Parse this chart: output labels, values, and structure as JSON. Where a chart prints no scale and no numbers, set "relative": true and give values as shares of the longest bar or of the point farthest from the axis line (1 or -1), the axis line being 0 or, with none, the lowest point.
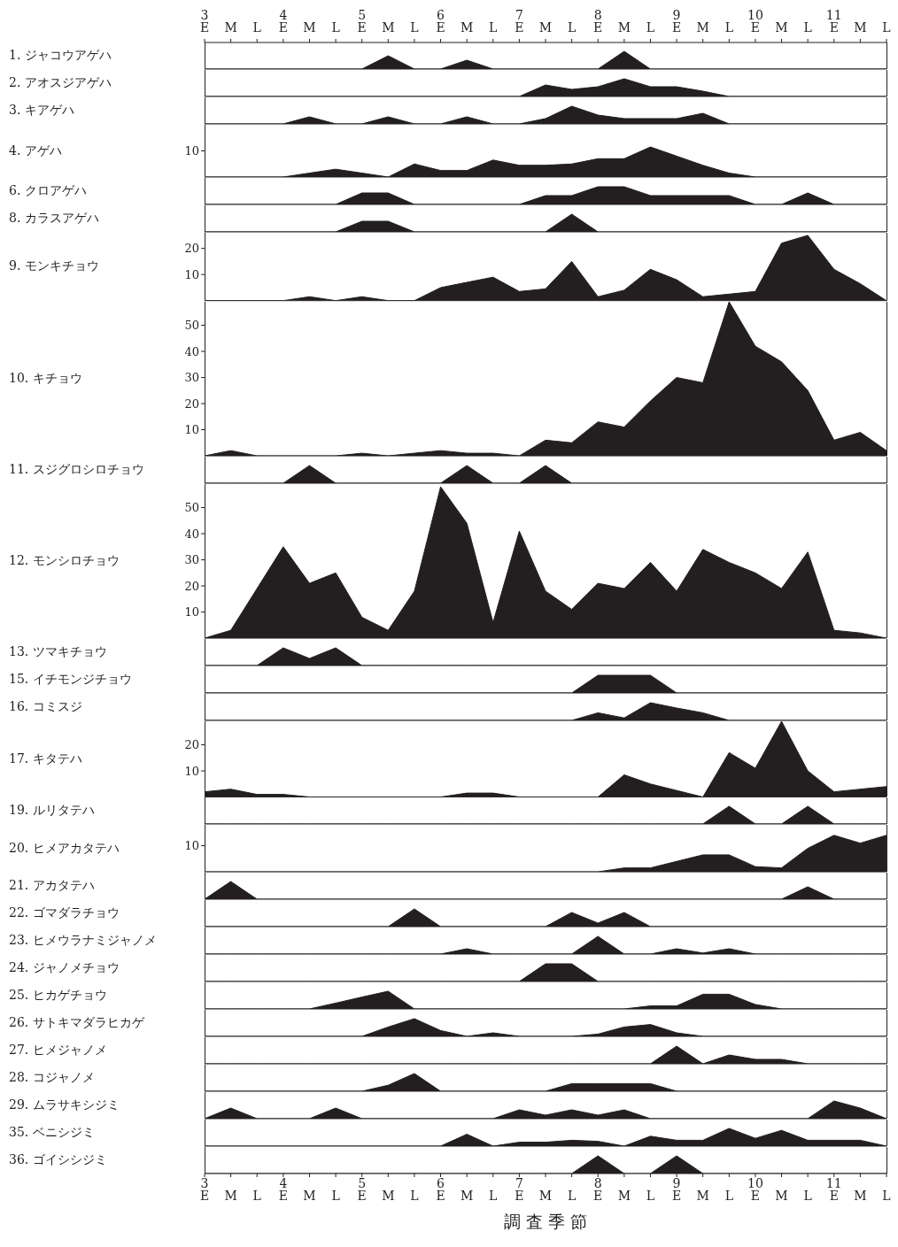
{
  "chart_data": [
    {
      "type": "area",
      "ylabel": "1. ジャコウアゲハ",
      "categories": [
        "3 E",
        "M",
        "L",
        "4 E",
        "M",
        "L",
        "5 E",
        "M",
        "L",
        "6 E",
        "M",
        "L",
        "7 E",
        "M",
        "L",
        "8 E",
        "M",
        "L",
        "9 E",
        "M",
        "L",
        "10 E",
        "M",
        "L",
        "11 E",
        "M",
        "L"
      ],
      "values": [
        0,
        0,
        0,
        0,
        0,
        0,
        0,
        0.75,
        0,
        0,
        0.5,
        0,
        0,
        0,
        0,
        0,
        1,
        0,
        0,
        0,
        0,
        0,
        0,
        0,
        0,
        0,
        0
      ],
      "color": "#231f20",
      "relative": true,
      "tick_labels": "x"
    },
    {
      "type": "area",
      "ylabel": "2. アオスジアゲハ",
      "categories": [
        null,
        null,
        null,
        null,
        null,
        null,
        null,
        null,
        null,
        null,
        null,
        null,
        null,
        null,
        null,
        null,
        null,
        null,
        null,
        null,
        null,
        null,
        null,
        null,
        null,
        null,
        null
      ],
      "values": [
        0,
        0,
        0,
        0,
        0,
        0,
        0,
        0,
        0,
        0,
        0,
        0,
        0,
        0.65,
        0.4,
        0.55,
        1,
        0.55,
        0.55,
        0.3,
        0,
        0,
        0,
        0,
        0,
        0,
        0
      ],
      "color": "#231f20",
      "relative": true,
      "tick_labels": false
    },
    {
      "type": "area",
      "ylabel": "3. キアゲハ",
      "categories": [
        null,
        null,
        null,
        null,
        null,
        null,
        null,
        null,
        null,
        null,
        null,
        null,
        null,
        null,
        null,
        null,
        null,
        null,
        null,
        null,
        null,
        null,
        null,
        null,
        null,
        null,
        null
      ],
      "values": [
        0,
        0,
        0,
        0,
        0.4,
        0,
        0,
        0.4,
        0,
        0,
        0.4,
        0,
        0,
        0.3,
        1,
        0.5,
        0.3,
        0.3,
        0.3,
        0.6,
        0,
        0,
        0,
        0,
        0,
        0,
        0
      ],
      "color": "#231f20",
      "relative": true,
      "tick_labels": false
    },
    {
      "type": "area",
      "ylabel": "4. アゲハ",
      "categories": [
        null,
        null,
        null,
        null,
        null,
        null,
        null,
        null,
        null,
        null,
        null,
        null,
        null,
        null,
        null,
        null,
        null,
        null,
        null,
        null,
        null,
        null,
        null,
        null,
        null,
        null,
        null
      ],
      "values": [
        0,
        0,
        0,
        0,
        1.5,
        3,
        1.5,
        0,
        5,
        2.5,
        2.5,
        6.5,
        4.5,
        4.5,
        5,
        7,
        7,
        11.5,
        8,
        4.5,
        1.5,
        0,
        0,
        0,
        0,
        0,
        0
      ],
      "color": "#231f20",
      "ylim": [
        0,
        20
      ],
      "yticks": [
        10
      ],
      "tick_labels": "y"
    },
    {
      "type": "area",
      "ylabel": "6. クロアゲハ",
      "categories": [
        null,
        null,
        null,
        null,
        null,
        null,
        null,
        null,
        null,
        null,
        null,
        null,
        null,
        null,
        null,
        null,
        null,
        null,
        null,
        null,
        null,
        null,
        null,
        null,
        null,
        null,
        null
      ],
      "values": [
        0,
        0,
        0,
        0,
        0,
        0,
        0.65,
        0.65,
        0,
        0,
        0,
        0,
        0,
        0.5,
        0.5,
        1,
        1,
        0.5,
        0.5,
        0.5,
        0.5,
        0,
        0,
        0.65,
        0,
        0,
        0
      ],
      "color": "#231f20",
      "relative": true,
      "tick_labels": false
    },
    {
      "type": "area",
      "ylabel": "8. カラスアゲハ",
      "categories": [
        null,
        null,
        null,
        null,
        null,
        null,
        null,
        null,
        null,
        null,
        null,
        null,
        null,
        null,
        null,
        null,
        null,
        null,
        null,
        null,
        null,
        null,
        null,
        null,
        null,
        null,
        null
      ],
      "values": [
        0,
        0,
        0,
        0,
        0,
        0,
        0.6,
        0.6,
        0,
        0,
        0,
        0,
        0,
        0,
        1,
        0,
        0,
        0,
        0,
        0,
        0,
        0,
        0,
        0,
        0,
        0,
        0
      ],
      "color": "#231f20",
      "relative": true,
      "tick_labels": false
    },
    {
      "type": "area",
      "ylabel": "9. モンキチョウ",
      "categories": [
        null,
        null,
        null,
        null,
        null,
        null,
        null,
        null,
        null,
        null,
        null,
        null,
        null,
        null,
        null,
        null,
        null,
        null,
        null,
        null,
        null,
        null,
        null,
        null,
        null,
        null,
        null
      ],
      "values": [
        0,
        0,
        0,
        0,
        1.5,
        0,
        1.5,
        0,
        0,
        5,
        7,
        9,
        3.5,
        4.5,
        15,
        1.5,
        4,
        12,
        8,
        1.5,
        2.5,
        3.5,
        22,
        25,
        12,
        6.5,
        0
      ],
      "color": "#231f20",
      "ylim": [
        0,
        26
      ],
      "yticks": [
        10,
        20
      ],
      "tick_labels": "y"
    },
    {
      "type": "area",
      "ylabel": "10. キチョウ",
      "categories": [
        null,
        null,
        null,
        null,
        null,
        null,
        null,
        null,
        null,
        null,
        null,
        null,
        null,
        null,
        null,
        null,
        null,
        null,
        null,
        null,
        null,
        null,
        null,
        null,
        null,
        null,
        null
      ],
      "values": [
        0,
        2,
        0,
        0,
        0,
        0,
        1,
        0,
        1,
        2,
        1,
        1,
        0,
        6,
        5,
        13,
        11,
        21,
        30,
        28,
        59,
        42,
        36,
        25,
        6,
        9,
        2
      ],
      "color": "#231f20",
      "ylim": [
        0,
        59
      ],
      "yticks": [
        10,
        20,
        30,
        40,
        50
      ],
      "tick_labels": "y"
    },
    {
      "type": "area",
      "ylabel": "11. スジグロシロチョウ",
      "categories": [
        null,
        null,
        null,
        null,
        null,
        null,
        null,
        null,
        null,
        null,
        null,
        null,
        null,
        null,
        null,
        null,
        null,
        null,
        null,
        null,
        null,
        null,
        null,
        null,
        null,
        null,
        null
      ],
      "values": [
        0,
        0,
        0,
        0,
        1,
        0,
        0,
        0,
        0,
        0,
        1,
        0,
        0,
        1,
        0,
        0,
        0,
        0,
        0,
        0,
        0,
        0,
        0,
        0,
        0,
        0,
        0
      ],
      "color": "#231f20",
      "relative": true,
      "tick_labels": false
    },
    {
      "type": "area",
      "ylabel": "12. モンシロチョウ",
      "categories": [
        null,
        null,
        null,
        null,
        null,
        null,
        null,
        null,
        null,
        null,
        null,
        null,
        null,
        null,
        null,
        null,
        null,
        null,
        null,
        null,
        null,
        null,
        null,
        null,
        null,
        null,
        null
      ],
      "values": [
        0,
        3,
        19,
        35,
        21,
        25,
        8,
        3,
        18,
        58,
        44,
        6,
        41,
        18,
        11,
        21,
        19,
        29,
        18,
        34,
        29,
        25,
        19,
        33,
        3,
        2,
        0
      ],
      "color": "#231f20",
      "ylim": [
        0,
        59
      ],
      "yticks": [
        10,
        20,
        30,
        40,
        50
      ],
      "tick_labels": "y"
    },
    {
      "type": "area",
      "ylabel": "13. ツマキチョウ",
      "categories": [
        null,
        null,
        null,
        null,
        null,
        null,
        null,
        null,
        null,
        null,
        null,
        null,
        null,
        null,
        null,
        null,
        null,
        null,
        null,
        null,
        null,
        null,
        null,
        null,
        null,
        null,
        null
      ],
      "values": [
        0,
        0,
        0,
        1,
        0.4,
        1,
        0,
        0,
        0,
        0,
        0,
        0,
        0,
        0,
        0,
        0,
        0,
        0,
        0,
        0,
        0,
        0,
        0,
        0,
        0,
        0,
        0
      ],
      "color": "#231f20",
      "relative": true,
      "tick_labels": false
    },
    {
      "type": "area",
      "ylabel": "15. イチモンジチョウ",
      "categories": [
        null,
        null,
        null,
        null,
        null,
        null,
        null,
        null,
        null,
        null,
        null,
        null,
        null,
        null,
        null,
        null,
        null,
        null,
        null,
        null,
        null,
        null,
        null,
        null,
        null,
        null,
        null
      ],
      "values": [
        0,
        0,
        0,
        0,
        0,
        0,
        0,
        0,
        0,
        0,
        0,
        0,
        0,
        0,
        0,
        1,
        1,
        1,
        0,
        0,
        0,
        0,
        0,
        0,
        0,
        0,
        0
      ],
      "color": "#231f20",
      "relative": true,
      "tick_labels": false
    },
    {
      "type": "area",
      "ylabel": "16. コミスジ",
      "categories": [
        null,
        null,
        null,
        null,
        null,
        null,
        null,
        null,
        null,
        null,
        null,
        null,
        null,
        null,
        null,
        null,
        null,
        null,
        null,
        null,
        null,
        null,
        null,
        null,
        null,
        null,
        null
      ],
      "values": [
        0,
        0,
        0,
        0,
        0,
        0,
        0,
        0,
        0,
        0,
        0,
        0,
        0,
        0,
        0,
        0.43,
        0.14,
        1,
        0.7,
        0.43,
        0,
        0,
        0,
        0,
        0,
        0,
        0
      ],
      "color": "#231f20",
      "relative": true,
      "tick_labels": false
    },
    {
      "type": "area",
      "ylabel": "17. キタテハ",
      "categories": [
        null,
        null,
        null,
        null,
        null,
        null,
        null,
        null,
        null,
        null,
        null,
        null,
        null,
        null,
        null,
        null,
        null,
        null,
        null,
        null,
        null,
        null,
        null,
        null,
        null,
        null,
        null
      ],
      "values": [
        2,
        3,
        1,
        1,
        0,
        0,
        0,
        0,
        0,
        0,
        1.5,
        1.5,
        0,
        0,
        0,
        0,
        8.5,
        5,
        2.5,
        0,
        17,
        11,
        29,
        10,
        2,
        3,
        4
      ],
      "color": "#231f20",
      "ylim": [
        0,
        29
      ],
      "yticks": [
        10,
        20
      ],
      "tick_labels": "y"
    },
    {
      "type": "area",
      "ylabel": "19. ルリタテハ",
      "categories": [
        null,
        null,
        null,
        null,
        null,
        null,
        null,
        null,
        null,
        null,
        null,
        null,
        null,
        null,
        null,
        null,
        null,
        null,
        null,
        null,
        null,
        null,
        null,
        null,
        null,
        null,
        null
      ],
      "values": [
        0,
        0,
        0,
        0,
        0,
        0,
        0,
        0,
        0,
        0,
        0,
        0,
        0,
        0,
        0,
        0,
        0,
        0,
        0,
        0,
        1,
        0,
        0,
        1,
        0,
        0,
        0
      ],
      "color": "#231f20",
      "relative": true,
      "tick_labels": false
    },
    {
      "type": "area",
      "ylabel": "20. ヒメアカタテハ",
      "categories": [
        null,
        null,
        null,
        null,
        null,
        null,
        null,
        null,
        null,
        null,
        null,
        null,
        null,
        null,
        null,
        null,
        null,
        null,
        null,
        null,
        null,
        null,
        null,
        null,
        null,
        null,
        null
      ],
      "values": [
        0,
        0,
        0,
        0,
        0,
        0,
        0,
        0,
        0,
        0,
        0,
        0,
        0,
        0,
        0,
        0,
        1.5,
        1.5,
        4,
        6.5,
        6.5,
        2,
        1.5,
        9,
        14,
        11,
        14
      ],
      "color": "#231f20",
      "ylim": [
        0,
        18
      ],
      "yticks": [
        10
      ],
      "tick_labels": "y"
    },
    {
      "type": "area",
      "ylabel": "21. アカタテハ",
      "categories": [
        null,
        null,
        null,
        null,
        null,
        null,
        null,
        null,
        null,
        null,
        null,
        null,
        null,
        null,
        null,
        null,
        null,
        null,
        null,
        null,
        null,
        null,
        null,
        null,
        null,
        null,
        null
      ],
      "values": [
        0,
        1,
        0,
        0,
        0,
        0,
        0,
        0,
        0,
        0,
        0,
        0,
        0,
        0,
        0,
        0,
        0,
        0,
        0,
        0,
        0,
        0,
        0,
        0.7,
        0,
        0,
        0
      ],
      "color": "#231f20",
      "relative": true,
      "tick_labels": false
    },
    {
      "type": "area",
      "ylabel": "22. ゴマダラチョウ",
      "categories": [
        null,
        null,
        null,
        null,
        null,
        null,
        null,
        null,
        null,
        null,
        null,
        null,
        null,
        null,
        null,
        null,
        null,
        null,
        null,
        null,
        null,
        null,
        null,
        null,
        null,
        null,
        null
      ],
      "values": [
        0,
        0,
        0,
        0,
        0,
        0,
        0,
        0,
        1,
        0,
        0,
        0,
        0,
        0,
        0.8,
        0.2,
        0.8,
        0,
        0,
        0,
        0,
        0,
        0,
        0,
        0,
        0,
        0
      ],
      "color": "#231f20",
      "relative": true,
      "tick_labels": false
    },
    {
      "type": "area",
      "ylabel": "23. ヒメウラナミジャノメ",
      "categories": [
        null,
        null,
        null,
        null,
        null,
        null,
        null,
        null,
        null,
        null,
        null,
        null,
        null,
        null,
        null,
        null,
        null,
        null,
        null,
        null,
        null,
        null,
        null,
        null,
        null,
        null,
        null
      ],
      "values": [
        0,
        0,
        0,
        0,
        0,
        0,
        0,
        0,
        0,
        0,
        0.3,
        0,
        0,
        0,
        0,
        1,
        0,
        0,
        0.3,
        0.06,
        0.3,
        0,
        0,
        0,
        0,
        0,
        0
      ],
      "color": "#231f20",
      "relative": true,
      "tick_labels": false
    },
    {
      "type": "area",
      "ylabel": "24. ジャノメチョウ",
      "categories": [
        null,
        null,
        null,
        null,
        null,
        null,
        null,
        null,
        null,
        null,
        null,
        null,
        null,
        null,
        null,
        null,
        null,
        null,
        null,
        null,
        null,
        null,
        null,
        null,
        null,
        null,
        null
      ],
      "values": [
        0,
        0,
        0,
        0,
        0,
        0,
        0,
        0,
        0,
        0,
        0,
        0,
        0,
        1,
        1,
        0,
        0,
        0,
        0,
        0,
        0,
        0,
        0,
        0,
        0,
        0,
        0
      ],
      "color": "#231f20",
      "relative": true,
      "tick_labels": false
    },
    {
      "type": "area",
      "ylabel": "25. ヒカゲチョウ",
      "categories": [
        null,
        null,
        null,
        null,
        null,
        null,
        null,
        null,
        null,
        null,
        null,
        null,
        null,
        null,
        null,
        null,
        null,
        null,
        null,
        null,
        null,
        null,
        null,
        null,
        null,
        null,
        null
      ],
      "values": [
        0,
        0,
        0,
        0,
        0,
        0.33,
        0.67,
        1,
        0,
        0,
        0,
        0,
        0,
        0,
        0,
        0,
        0,
        0.17,
        0.17,
        0.83,
        0.83,
        0.25,
        0,
        0,
        0,
        0,
        0
      ],
      "color": "#231f20",
      "relative": true,
      "tick_labels": false
    },
    {
      "type": "area",
      "ylabel": "26. サトキマダラヒカゲ",
      "categories": [
        null,
        null,
        null,
        null,
        null,
        null,
        null,
        null,
        null,
        null,
        null,
        null,
        null,
        null,
        null,
        null,
        null,
        null,
        null,
        null,
        null,
        null,
        null,
        null,
        null,
        null,
        null
      ],
      "values": [
        0,
        0,
        0,
        0,
        0,
        0,
        0,
        0.53,
        1,
        0.33,
        0,
        0.2,
        0,
        0,
        0,
        0.13,
        0.53,
        0.67,
        0.2,
        0,
        0,
        0,
        0,
        0,
        0,
        0,
        0
      ],
      "color": "#231f20",
      "relative": true,
      "tick_labels": false
    },
    {
      "type": "area",
      "ylabel": "27. ヒメジャノメ",
      "categories": [
        null,
        null,
        null,
        null,
        null,
        null,
        null,
        null,
        null,
        null,
        null,
        null,
        null,
        null,
        null,
        null,
        null,
        null,
        null,
        null,
        null,
        null,
        null,
        null,
        null,
        null,
        null
      ],
      "values": [
        0,
        0,
        0,
        0,
        0,
        0,
        0,
        0,
        0,
        0,
        0,
        0,
        0,
        0,
        0,
        0,
        0,
        0,
        1,
        0,
        0.5,
        0.25,
        0.25,
        0,
        0,
        0,
        0
      ],
      "color": "#231f20",
      "relative": true,
      "tick_labels": false
    },
    {
      "type": "area",
      "ylabel": "28. コジャノメ",
      "categories": [
        null,
        null,
        null,
        null,
        null,
        null,
        null,
        null,
        null,
        null,
        null,
        null,
        null,
        null,
        null,
        null,
        null,
        null,
        null,
        null,
        null,
        null,
        null,
        null,
        null,
        null,
        null
      ],
      "values": [
        0,
        0,
        0,
        0,
        0,
        0,
        0,
        0.34,
        1,
        0,
        0,
        0,
        0,
        0,
        0.43,
        0.43,
        0.43,
        0.43,
        0,
        0,
        0,
        0,
        0,
        0,
        0,
        0,
        0
      ],
      "color": "#231f20",
      "relative": true,
      "tick_labels": false
    },
    {
      "type": "area",
      "ylabel": "29. ムラサキシジミ",
      "categories": [
        null,
        null,
        null,
        null,
        null,
        null,
        null,
        null,
        null,
        null,
        null,
        null,
        null,
        null,
        null,
        null,
        null,
        null,
        null,
        null,
        null,
        null,
        null,
        null,
        null,
        null,
        null
      ],
      "values": [
        0,
        0.6,
        0,
        0,
        0,
        0.6,
        0,
        0,
        0,
        0,
        0,
        0,
        0.5,
        0.2,
        0.5,
        0.2,
        0.5,
        0,
        0,
        0,
        0,
        0,
        0,
        0,
        1,
        0.6,
        0
      ],
      "color": "#231f20",
      "relative": true,
      "tick_labels": false
    },
    {
      "type": "area",
      "ylabel": "35. ベニシジミ",
      "categories": [
        null,
        null,
        null,
        null,
        null,
        null,
        null,
        null,
        null,
        null,
        null,
        null,
        null,
        null,
        null,
        null,
        null,
        null,
        null,
        null,
        null,
        null,
        null,
        null,
        null,
        null,
        null
      ],
      "values": [
        0,
        0,
        0,
        0,
        0,
        0,
        0,
        0,
        0,
        0,
        0.67,
        0,
        0.22,
        0.22,
        0.33,
        0.27,
        0,
        0.56,
        0.33,
        0.33,
        1,
        0.44,
        0.89,
        0.33,
        0.33,
        0.33,
        0
      ],
      "color": "#231f20",
      "relative": true,
      "tick_labels": false
    },
    {
      "type": "area",
      "ylabel": "36. ゴイシシジミ",
      "categories": [
        "3 E",
        "M",
        "L",
        "4 E",
        "M",
        "L",
        "5 E",
        "M",
        "L",
        "6 E",
        "M",
        "L",
        "7 E",
        "M",
        "L",
        "8 E",
        "M",
        "L",
        "9 E",
        "M",
        "L",
        "10 E",
        "M",
        "L",
        "11 E",
        "M",
        "L"
      ],
      "values": [
        0,
        0,
        0,
        0,
        0,
        0,
        0,
        0,
        0,
        0,
        0,
        0,
        0,
        0,
        0,
        1,
        0,
        0,
        1,
        0,
        0,
        0,
        0,
        0,
        0,
        0,
        0
      ],
      "color": "#231f20",
      "relative": true,
      "tick_labels": "x",
      "xlabel": "調 査 季 節"
    }
  ]
}
